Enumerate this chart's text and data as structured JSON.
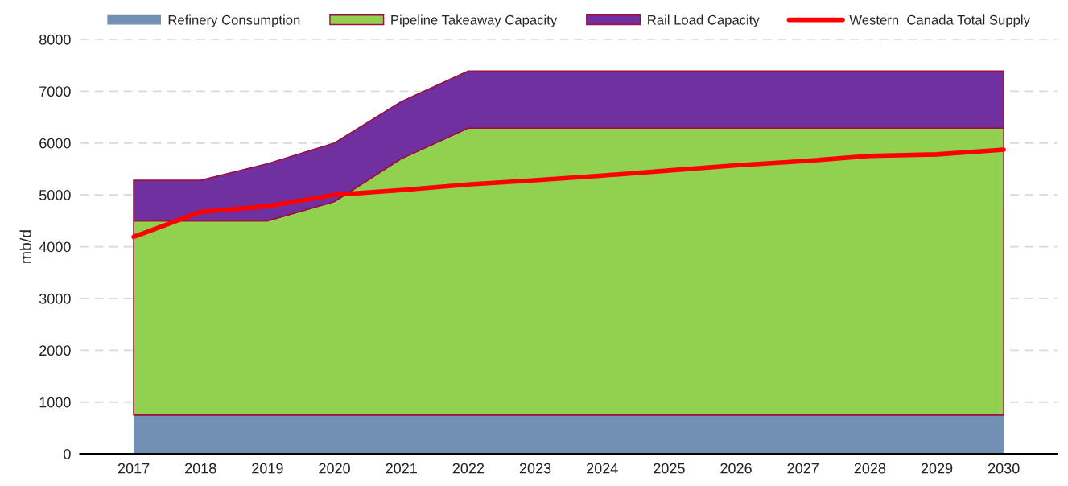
{
  "chart_data": {
    "type": "area",
    "ylabel": "mb/d",
    "stacked": true,
    "categories": [
      "2017",
      "2018",
      "2019",
      "2020",
      "2021",
      "2022",
      "2023",
      "2024",
      "2025",
      "2026",
      "2027",
      "2028",
      "2029",
      "2030"
    ],
    "series": [
      {
        "name": "Refinery Consumption",
        "color": "#7190b4",
        "values": [
          750,
          750,
          750,
          750,
          750,
          750,
          750,
          750,
          750,
          750,
          750,
          750,
          750,
          750
        ]
      },
      {
        "name": "Pipeline Takeaway Capacity",
        "color": "#92d050",
        "values": [
          3750,
          3750,
          3750,
          4120,
          4950,
          5540,
          5540,
          5540,
          5540,
          5540,
          5540,
          5540,
          5540,
          5540
        ]
      },
      {
        "name": "Rail Load Capacity",
        "color": "#7030a0",
        "values": [
          780,
          780,
          1100,
          1130,
          1100,
          1100,
          1100,
          1100,
          1100,
          1100,
          1100,
          1100,
          1100,
          1100
        ]
      },
      {
        "name": "Western  Canada Total Supply",
        "color": "#ff0000",
        "type": "line",
        "values": [
          4190,
          4670,
          4780,
          5000,
          5090,
          5200,
          5280,
          5370,
          5470,
          5570,
          5650,
          5750,
          5780,
          5870
        ]
      }
    ],
    "ylim": [
      0,
      8000
    ],
    "yticks": [
      0,
      1000,
      2000,
      3000,
      4000,
      5000,
      6000,
      7000,
      8000
    ],
    "grid": "y",
    "legend": "top"
  }
}
